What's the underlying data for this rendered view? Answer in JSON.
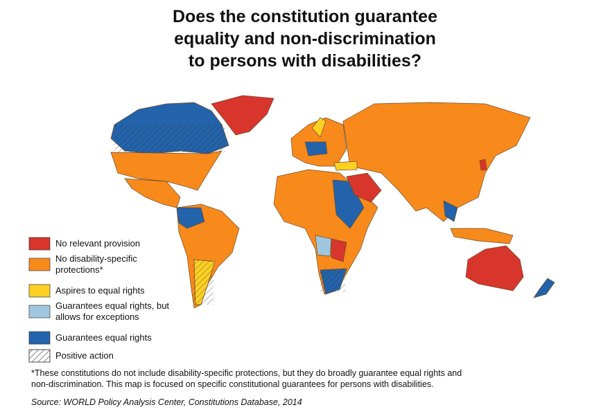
{
  "title_lines": [
    "Does the constitution guarantee",
    "equality and non-discrimination",
    "to persons with disabilities?"
  ],
  "legend": [
    {
      "label_lines": [
        "No relevant provision"
      ],
      "color": "#d8352c"
    },
    {
      "label_lines": [
        "No disability-specific",
        "protections*"
      ],
      "color": "#f88a1c"
    },
    {
      "label_lines": [
        "Aspires to equal rights"
      ],
      "color": "#fdd023"
    },
    {
      "label_lines": [
        "Guarantees equal rights, but",
        "allows for exceptions"
      ],
      "color": "#9fc8e0"
    },
    {
      "label_lines": [
        "Guarantees equal rights"
      ],
      "color": "#2263ab"
    },
    {
      "label_lines": [
        "Positive action"
      ],
      "pattern": "hatch"
    }
  ],
  "footnote_lines": [
    "*These constitutions do not include disability-specific protections, but they do broadly guarantee equal rights and",
    "non-discrimination. This map is focused on specific constitutional guarantees for persons with disabilities."
  ],
  "source": "Source: WORLD Policy Analysis Center, Constitutions Database, 2014"
}
